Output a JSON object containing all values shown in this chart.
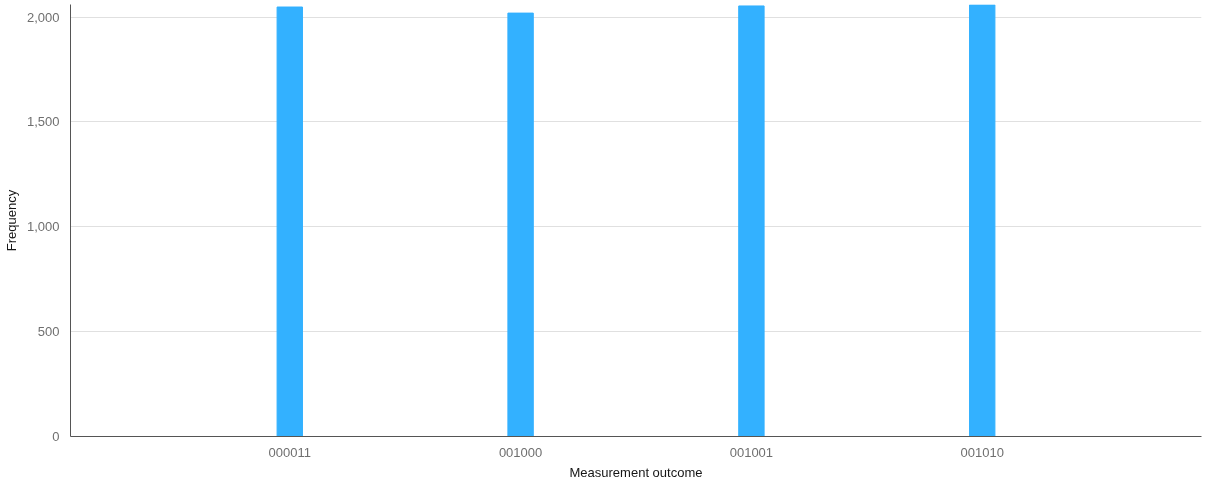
{
  "chart_data": {
    "type": "bar",
    "xlabel": "Measurement outcome",
    "ylabel": "Frequency",
    "categories": [
      "000011",
      "001000",
      "001001",
      "001010"
    ],
    "values": [
      2048,
      2019,
      2053,
      2058
    ],
    "color": "#33b1ff",
    "ylim": [
      0,
      2060
    ],
    "yticks": [
      {
        "value": 0,
        "label": "0"
      },
      {
        "value": 500,
        "label": "500"
      },
      {
        "value": 1000,
        "label": "1,000"
      },
      {
        "value": 1500,
        "label": "1,500"
      },
      {
        "value": 2000,
        "label": "2,000"
      }
    ],
    "grid": "y"
  }
}
